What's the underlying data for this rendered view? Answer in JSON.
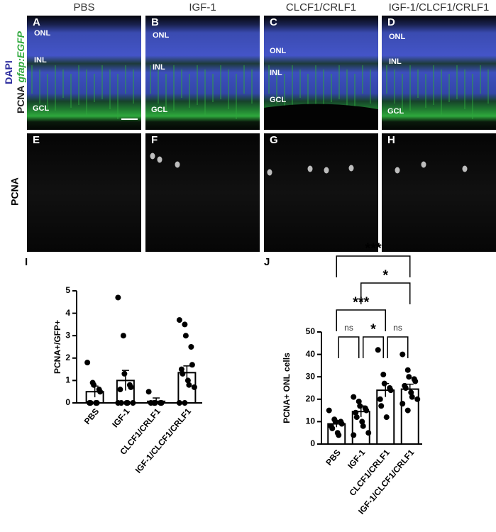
{
  "micrographs": {
    "columns": [
      "PBS",
      "IGF-1",
      "CLCF1/CRLF1",
      "IGF-1/CLCF1/CRLF1"
    ],
    "row1_label": {
      "stain1": "DAPI",
      "stain2": "PCNA",
      "stain3": "gfap:EGFP"
    },
    "row2_label": "PCNA",
    "panels": [
      {
        "letter": "A",
        "layers": [
          "ONL",
          "INL",
          "GCL"
        ]
      },
      {
        "letter": "B",
        "layers": [
          "ONL",
          "INL",
          "GCL"
        ]
      },
      {
        "letter": "C",
        "layers": [
          "ONL",
          "INL",
          "GCL"
        ]
      },
      {
        "letter": "D",
        "layers": [
          "ONL",
          "INL",
          "GCL"
        ]
      },
      {
        "letter": "E",
        "layers": []
      },
      {
        "letter": "F",
        "layers": []
      },
      {
        "letter": "G",
        "layers": []
      },
      {
        "letter": "H",
        "layers": []
      }
    ]
  },
  "chart_data": [
    {
      "type": "bar",
      "letter": "I",
      "y_label": "PCNA+/GFP+",
      "categories": [
        "PBS",
        "IGF-1",
        "CLCF1/CRLF1",
        "IGF-1/CLCF1/CRLF1"
      ],
      "values": [
        0.5,
        1.0,
        0.07,
        1.35
      ],
      "errors": [
        0.25,
        0.45,
        0.15,
        0.3
      ],
      "points": [
        [
          1.8,
          0.9,
          0.8,
          0.6,
          0.5,
          0,
          0,
          0,
          0
        ],
        [
          4.7,
          3.0,
          1.3,
          0.8,
          0.7,
          0.6,
          0,
          0,
          0,
          0,
          0
        ],
        [
          0.5,
          0,
          0,
          0,
          0,
          0
        ],
        [
          3.7,
          3.5,
          3.0,
          2.5,
          1.7,
          1.5,
          1.3,
          1.0,
          0.8,
          0.7,
          0,
          0
        ]
      ],
      "color": "#ffffff",
      "ylim": [
        0,
        5
      ],
      "yticks": [
        0,
        1,
        2,
        3,
        4,
        5
      ]
    },
    {
      "type": "bar",
      "letter": "J",
      "y_label": "PCNA+ ONL cells",
      "categories": [
        "PBS",
        "IGF-1",
        "CLCF1/CRLF1",
        "IGF-1/CLCF1/CRLF1"
      ],
      "values": [
        9,
        14.5,
        24,
        24.5
      ],
      "errors": [
        1.5,
        2.5,
        3,
        2.2
      ],
      "points": [
        [
          15,
          11,
          10,
          10,
          9,
          8,
          7,
          5,
          4
        ],
        [
          21,
          19,
          17,
          16,
          15,
          14,
          12,
          10,
          8,
          5,
          4
        ],
        [
          42,
          31,
          27,
          25,
          24,
          20,
          17,
          12
        ],
        [
          40,
          33,
          30,
          29,
          28,
          26,
          25,
          23,
          21,
          20,
          18,
          15
        ]
      ],
      "color": "#ffffff",
      "ylim": [
        0,
        50
      ],
      "yticks": [
        0,
        10,
        20,
        30,
        40,
        50
      ],
      "brackets": [
        {
          "from": 0,
          "to": 1,
          "label": "ns"
        },
        {
          "from": 1,
          "to": 2,
          "label": "*"
        },
        {
          "from": 2,
          "to": 3,
          "label": "ns"
        },
        {
          "from": 0,
          "to": 2,
          "label": "***"
        },
        {
          "from": 1,
          "to": 3,
          "label": "*"
        },
        {
          "from": 0,
          "to": 3,
          "label": "***"
        }
      ]
    }
  ]
}
